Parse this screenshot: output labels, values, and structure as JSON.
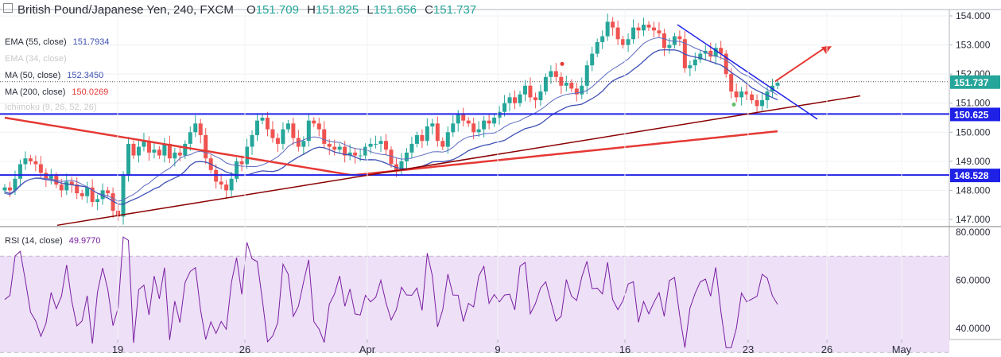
{
  "header": {
    "symbol_title": "British Pound/Japanese Yen, 240, FXCM",
    "open_label": "O",
    "open": "151.709",
    "high_label": "H",
    "high": "151.825",
    "low_label": "L",
    "low": "151.656",
    "close_label": "C",
    "close": "151.737"
  },
  "indicators": [
    {
      "label": "EMA (55, close)",
      "value": "151.7934",
      "color": "#3f51b5",
      "faded": false
    },
    {
      "label": "EMA (34, close)",
      "value": "",
      "color": "#c9c9c9",
      "faded": true
    },
    {
      "label": "MA (50, close)",
      "value": "152.3450",
      "color": "#3f51b5",
      "faded": false
    },
    {
      "label": "MA (200, close)",
      "value": "150.0269",
      "color": "#e53935",
      "faded": false
    },
    {
      "label": "Ichimoku (9, 26, 52, 26)",
      "value": "",
      "color": "#c9c9c9",
      "faded": true
    }
  ],
  "rsi": {
    "label": "RSI (14, close)",
    "value": "49.9770",
    "color": "#7b1fa2"
  },
  "price_axis": {
    "ticks": [
      "154.000",
      "153.000",
      "152.000",
      "151.000",
      "150.000",
      "149.000",
      "148.000",
      "147.000"
    ],
    "badges": [
      {
        "text": "151.737",
        "color": "#26a69a"
      },
      {
        "text": "150.625",
        "color": "#1f21e6"
      },
      {
        "text": "148.528",
        "color": "#1f21e6"
      }
    ]
  },
  "rsi_axis": {
    "ticks": [
      "80.0000",
      "60.0000",
      "40.0000"
    ],
    "upper_band": 70,
    "lower_band": 30
  },
  "time_axis": {
    "labels": [
      "19",
      "26",
      "Apr",
      "9",
      "16",
      "23",
      "26",
      "May"
    ]
  },
  "colors": {
    "candle_up": "#26a69a",
    "candle_down": "#ef5350",
    "support_line": "#1f21e6",
    "trendline": "#8b0000",
    "triangle_line": "#1f21e6",
    "arrow": "#e53935",
    "rsi_line": "#7b1fa2",
    "rsi_band": "#ede0f7"
  },
  "chart_data": {
    "type": "candlestick",
    "timeframe": "240",
    "ylim": [
      146.7,
      154.3
    ],
    "last_price": 151.737,
    "candles_close": [
      148.1,
      148.0,
      148.4,
      148.9,
      149.1,
      149.0,
      148.9,
      148.6,
      148.4,
      148.5,
      148.2,
      148.0,
      148.3,
      148.2,
      147.9,
      147.8,
      148.1,
      147.6,
      147.7,
      148.0,
      147.9,
      147.3,
      147.1,
      148.5,
      149.6,
      149.2,
      149.5,
      149.7,
      149.3,
      149.4,
      149.2,
      149.6,
      149.1,
      149.3,
      149.2,
      149.6,
      150.0,
      150.3,
      149.9,
      149.1,
      148.7,
      148.3,
      148.2,
      148.0,
      148.4,
      149.0,
      148.9,
      149.5,
      149.9,
      150.4,
      150.5,
      150.1,
      149.8,
      149.6,
      150.1,
      150.3,
      149.8,
      149.5,
      149.7,
      150.4,
      150.3,
      150.1,
      149.6,
      149.5,
      149.4,
      149.5,
      149.2,
      149.3,
      149.2,
      149.2,
      149.5,
      149.6,
      149.6,
      149.7,
      149.4,
      148.9,
      148.7,
      149.0,
      149.3,
      149.6,
      149.9,
      149.7,
      150.2,
      150.3,
      149.7,
      149.5,
      150.0,
      150.3,
      150.6,
      150.4,
      150.3,
      150.0,
      150.1,
      150.4,
      150.3,
      150.5,
      150.7,
      151.0,
      151.2,
      151.0,
      151.3,
      151.6,
      151.2,
      151.1,
      151.4,
      151.9,
      152.1,
      151.9,
      151.6,
      151.7,
      151.5,
      151.3,
      151.6,
      152.3,
      152.7,
      153.1,
      153.3,
      153.8,
      153.6,
      153.2,
      153.0,
      153.2,
      153.6,
      153.5,
      153.7,
      153.6,
      153.5,
      153.4,
      152.9,
      153.0,
      153.3,
      153.2,
      152.2,
      152.3,
      152.5,
      152.7,
      152.8,
      152.6,
      152.9,
      152.7,
      152.0,
      151.4,
      151.2,
      151.4,
      151.3,
      151.1,
      150.9,
      151.1,
      151.4,
      151.6,
      151.7
    ],
    "series": [
      {
        "name": "EMA (55, close)",
        "last": 151.7934
      },
      {
        "name": "MA (50, close)",
        "last": 152.345
      },
      {
        "name": "MA (200, close)",
        "last": 150.0269
      },
      {
        "name": "RSI (14, close)",
        "last": 49.977
      }
    ],
    "horizontal_lines": [
      150.625,
      148.528
    ],
    "rsi_ylim": [
      25,
      82
    ]
  }
}
